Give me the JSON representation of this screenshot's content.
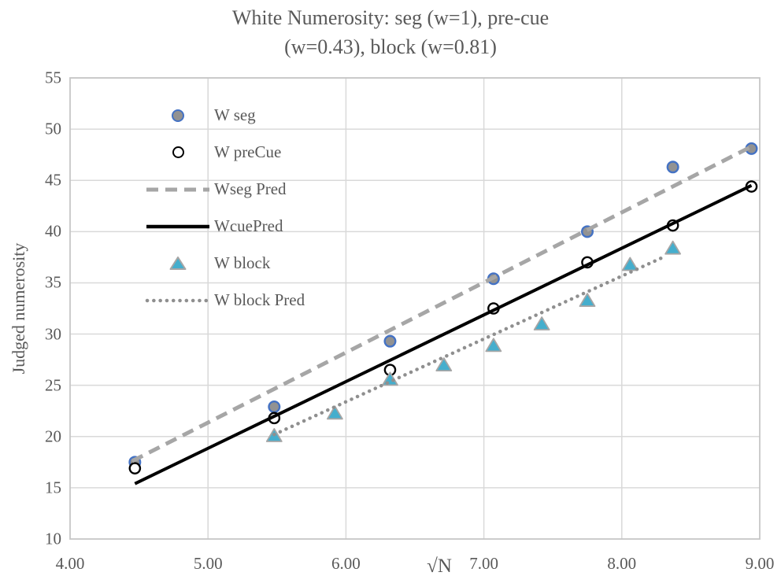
{
  "figure": {
    "title_line1": "White Numerosity: seg (w=1), pre-cue",
    "title_line2": "(w=0.43), block (w=0.81)"
  },
  "legend": [
    {
      "label": "W seg",
      "marker": "filled-circle"
    },
    {
      "label": "W preCue",
      "marker": "open-circle"
    },
    {
      "label": "Wseg Pred",
      "marker": "dashed-line"
    },
    {
      "label": "WcuePred",
      "marker": "solid-line"
    },
    {
      "label": "W block",
      "marker": "triangle"
    },
    {
      "label": "W block Pred",
      "marker": "dotted-line"
    }
  ],
  "colors": {
    "text": "#595959",
    "gridline": "#D9D9D9",
    "axis_border": "#C6C6C6",
    "seg_fill": "#929292",
    "seg_edge": "#4472C4",
    "precue_fill": "#FFFFFF",
    "precue_edge": "#000000",
    "dashed_line": "#A6A6A6",
    "solid_line": "#000000",
    "block_fill": "#45AECD",
    "block_edge": "#A6A6A6",
    "dotted_line": "#8F8F8F"
  },
  "chart_data": {
    "type": "scatter",
    "title": "White Numerosity: seg (w=1), pre-cue (w=0.43), block (w=0.81)",
    "xlabel": "√N",
    "ylabel": "Judged numerosity",
    "xlim": [
      4,
      9
    ],
    "ylim": [
      10,
      55
    ],
    "grid": true,
    "legend_position": "upper-left-inside",
    "x_tick_labels": [
      "4.00",
      "5.00",
      "6.00",
      "7.00",
      "8.00",
      "9.00"
    ],
    "x_tick_values": [
      4,
      5,
      6,
      7,
      8,
      9
    ],
    "y_tick_values": [
      10,
      15,
      20,
      25,
      30,
      35,
      40,
      45,
      50,
      55
    ],
    "x_gridline_values": [
      5,
      6,
      7,
      8
    ],
    "y_gridline_values": [
      15,
      20,
      25,
      30,
      35,
      40,
      45,
      50,
      55
    ],
    "series": [
      {
        "name": "W seg",
        "type": "scatter",
        "marker": "circle-filled",
        "x": [
          4.47,
          5.48,
          6.32,
          7.07,
          7.75,
          8.37,
          8.94
        ],
        "y": [
          17.5,
          22.9,
          29.3,
          35.4,
          40.0,
          46.3,
          48.1
        ]
      },
      {
        "name": "W preCue",
        "type": "scatter",
        "marker": "circle-open",
        "x": [
          4.47,
          5.48,
          6.32,
          7.07,
          7.75,
          8.37,
          8.94
        ],
        "y": [
          16.9,
          21.8,
          26.5,
          32.5,
          37.0,
          40.6,
          44.4
        ]
      },
      {
        "name": "Wseg Pred",
        "type": "line",
        "style": "dashed",
        "x": [
          4.45,
          8.94
        ],
        "y": [
          17.6,
          48.3
        ]
      },
      {
        "name": "WcuePred",
        "type": "line",
        "style": "solid",
        "x": [
          4.47,
          8.94
        ],
        "y": [
          15.4,
          44.5
        ]
      },
      {
        "name": "W block",
        "type": "scatter",
        "marker": "triangle",
        "x": [
          5.48,
          5.92,
          6.32,
          6.71,
          7.07,
          7.42,
          7.75,
          8.06,
          8.37
        ],
        "y": [
          20.1,
          22.3,
          25.6,
          27.0,
          28.9,
          31.0,
          33.3,
          36.8,
          38.4
        ]
      },
      {
        "name": "W block Pred",
        "type": "line",
        "style": "dotted",
        "x": [
          5.48,
          8.3
        ],
        "y": [
          20.2,
          37.5
        ]
      }
    ]
  }
}
